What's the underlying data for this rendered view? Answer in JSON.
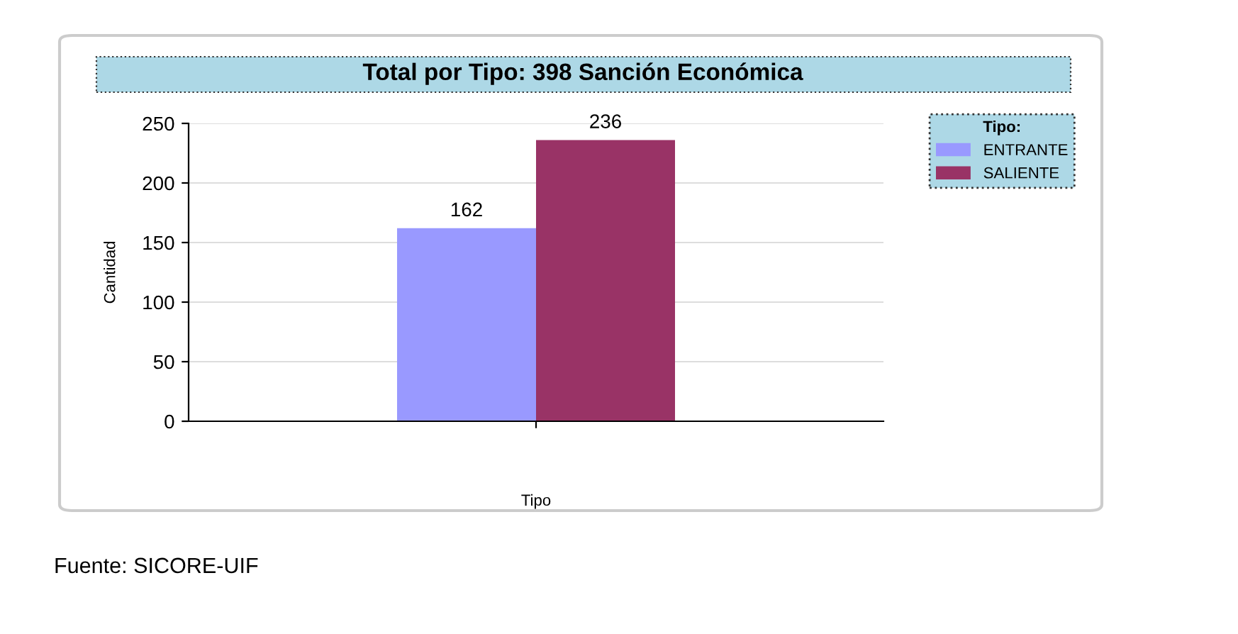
{
  "chart_data": {
    "type": "bar",
    "title": "Total por Tipo: 398 Sanción Económica",
    "xlabel": "Tipo",
    "ylabel": "Cantidad",
    "legend_title": "Tipo:",
    "categories": [
      null
    ],
    "series": [
      {
        "name": "ENTRANTE",
        "color": "#9999ff",
        "values": [
          162
        ]
      },
      {
        "name": "SALIENTE",
        "color": "#993366",
        "values": [
          236
        ]
      }
    ],
    "ylim": [
      0,
      250
    ],
    "yticks": [
      0,
      50,
      100,
      150,
      200,
      250
    ],
    "grid": "y",
    "legend": "top right",
    "data_labels": true,
    "annotations": [
      "Fuente: SICORE-UIF"
    ]
  }
}
